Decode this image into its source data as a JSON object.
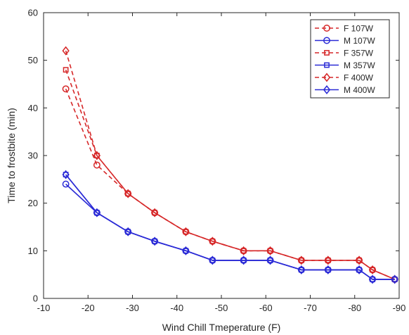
{
  "chart_data": {
    "type": "line",
    "title": "",
    "xlabel": "Wind Chill Tmeperature (F)",
    "ylabel": "Time to frostbite (min)",
    "xlim": [
      -10,
      -90
    ],
    "ylim": [
      0,
      60
    ],
    "x_reversed": true,
    "xticks": [
      -10,
      -20,
      -30,
      -40,
      -50,
      -60,
      -70,
      -80,
      -90
    ],
    "yticks": [
      0,
      10,
      20,
      30,
      40,
      50,
      60
    ],
    "xtick_labels": [
      "-10",
      "-20",
      "-30",
      "-40",
      "-50",
      "-60",
      "-70",
      "-80",
      "-90"
    ],
    "ytick_labels": [
      "0",
      "10",
      "20",
      "30",
      "40",
      "50",
      "60"
    ],
    "grid": false,
    "legend_position": "top-right",
    "series": [
      {
        "name": "F 107W",
        "color": "#d62728",
        "dash": true,
        "marker": "circle",
        "x": [
          -15,
          -22,
          -29,
          -35,
          -42,
          -48,
          -55,
          -61,
          -68,
          -74,
          -81,
          -84,
          -89
        ],
        "y": [
          44,
          28,
          22,
          18,
          14,
          12,
          10,
          10,
          8,
          8,
          8,
          6,
          4
        ]
      },
      {
        "name": "M 107W",
        "color": "#2b2bd6",
        "dash": false,
        "marker": "circle",
        "x": [
          -15,
          -22,
          -29,
          -35,
          -42,
          -48,
          -55,
          -61,
          -68,
          -74,
          -81,
          -84,
          -89
        ],
        "y": [
          24,
          18,
          14,
          12,
          10,
          8,
          8,
          8,
          6,
          6,
          6,
          4,
          4
        ]
      },
      {
        "name": "F 357W",
        "color": "#d62728",
        "dash": true,
        "marker": "square",
        "x": [
          -15,
          -22,
          -29,
          -35,
          -42,
          -48,
          -55,
          -61,
          -68,
          -74,
          -81,
          -84,
          -89
        ],
        "y": [
          48,
          30,
          22,
          18,
          14,
          12,
          10,
          10,
          8,
          8,
          8,
          6,
          4
        ]
      },
      {
        "name": "M 357W",
        "color": "#2b2bd6",
        "dash": false,
        "marker": "square",
        "x": [
          -15,
          -22,
          -29,
          -35,
          -42,
          -48,
          -55,
          -61,
          -68,
          -74,
          -81,
          -84,
          -89
        ],
        "y": [
          26,
          18,
          14,
          12,
          10,
          8,
          8,
          8,
          6,
          6,
          6,
          4,
          4
        ]
      },
      {
        "name": "F 400W",
        "color": "#d62728",
        "dash": true,
        "marker": "diamond",
        "x": [
          -15,
          -22,
          -29,
          -35,
          -42,
          -48,
          -55,
          -61,
          -68,
          -74,
          -81,
          -84,
          -89
        ],
        "y": [
          52,
          30,
          22,
          18,
          14,
          12,
          10,
          10,
          8,
          8,
          8,
          6,
          4
        ]
      },
      {
        "name": "M 400W",
        "color": "#2b2bd6",
        "dash": false,
        "marker": "diamond",
        "x": [
          -15,
          -22,
          -29,
          -35,
          -42,
          -48,
          -55,
          -61,
          -68,
          -74,
          -81,
          -84,
          -89
        ],
        "y": [
          26,
          18,
          14,
          12,
          10,
          8,
          8,
          8,
          6,
          6,
          6,
          4,
          4
        ]
      }
    ]
  }
}
